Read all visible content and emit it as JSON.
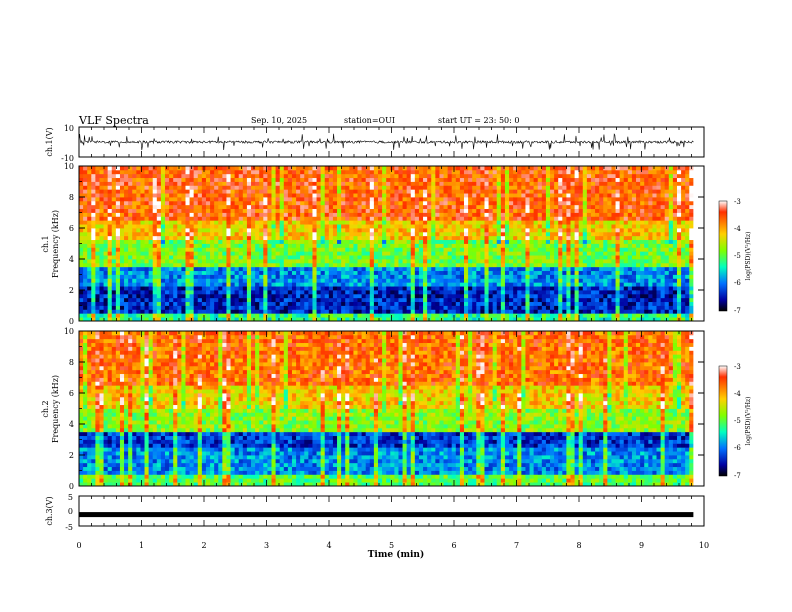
{
  "header": {
    "title": "VLF Spectra",
    "date": "Sep. 10, 2025",
    "station": "station=OUI",
    "start": "start  UT  =   23: 50: 0"
  },
  "colorbar": {
    "label": "log(PSD)(V²/Hz)",
    "ticks": [
      "-3",
      "-4",
      "-5",
      "-6",
      "-7"
    ],
    "colors": [
      "#ffffff",
      "#ff2a00",
      "#ffd700",
      "#7fff00",
      "#00ffd0",
      "#0060ff",
      "#000090",
      "#000000"
    ]
  },
  "chart_data": [
    {
      "type": "line",
      "name": "ch.1 waveform",
      "ylabel": "ch.1(V)",
      "ylim": [
        -10,
        10
      ],
      "yticks": [
        "10",
        "-10"
      ],
      "xlim": [
        0,
        10
      ],
      "description_values": {
        "baseline_approx": 0,
        "spike_range": [
          -4,
          6
        ]
      }
    },
    {
      "type": "heatmap",
      "name": "ch.1 spectrogram",
      "ylabel": "ch.1\nFrequency (kHz)",
      "ylabel_line1": "ch.1",
      "ylabel_line2": "Frequency  (kHz)",
      "ylim": [
        0,
        10
      ],
      "yticks": [
        "0",
        "2",
        "4",
        "6",
        "8",
        "10"
      ],
      "xlim": [
        0,
        10
      ],
      "colorbar_range": [
        -7,
        -3
      ],
      "bands_khz": [
        {
          "from": 0,
          "to": 0.6,
          "level": -5.2
        },
        {
          "from": 0.6,
          "to": 2.2,
          "level": -6.4
        },
        {
          "from": 2.2,
          "to": 3.6,
          "level": -5.9
        },
        {
          "from": 3.6,
          "to": 5.2,
          "level": -4.9
        },
        {
          "from": 5.2,
          "to": 6.5,
          "level": -4.2
        },
        {
          "from": 6.5,
          "to": 10,
          "level": -3.6
        }
      ]
    },
    {
      "type": "heatmap",
      "name": "ch.2 spectrogram",
      "ylabel_line1": "ch.2",
      "ylabel_line2": "Frequency  (kHz)",
      "ylim": [
        0,
        10
      ],
      "yticks": [
        "0",
        "2",
        "4",
        "6",
        "8",
        "10"
      ],
      "xlim": [
        0,
        10
      ],
      "colorbar_range": [
        -7,
        -3
      ],
      "bands_khz": [
        {
          "from": 0,
          "to": 0.8,
          "level": -5.0
        },
        {
          "from": 0.8,
          "to": 2.4,
          "level": -5.9
        },
        {
          "from": 2.4,
          "to": 3.6,
          "level": -6.3
        },
        {
          "from": 3.6,
          "to": 5.0,
          "level": -4.8
        },
        {
          "from": 5.0,
          "to": 6.5,
          "level": -4.2
        },
        {
          "from": 6.5,
          "to": 10,
          "level": -3.7
        }
      ]
    },
    {
      "type": "line",
      "name": "ch.3 waveform",
      "ylabel": "ch.3(V)",
      "ylim": [
        -5,
        5
      ],
      "yticks": [
        "5",
        "0",
        "-5"
      ],
      "xlim": [
        0,
        9.83
      ],
      "values_constant": -1.2
    }
  ],
  "xaxis": {
    "label": "Time  (min)",
    "ticks": [
      "0",
      "1",
      "2",
      "3",
      "4",
      "5",
      "6",
      "7",
      "8",
      "9",
      "10"
    ],
    "data_end": 9.83
  }
}
